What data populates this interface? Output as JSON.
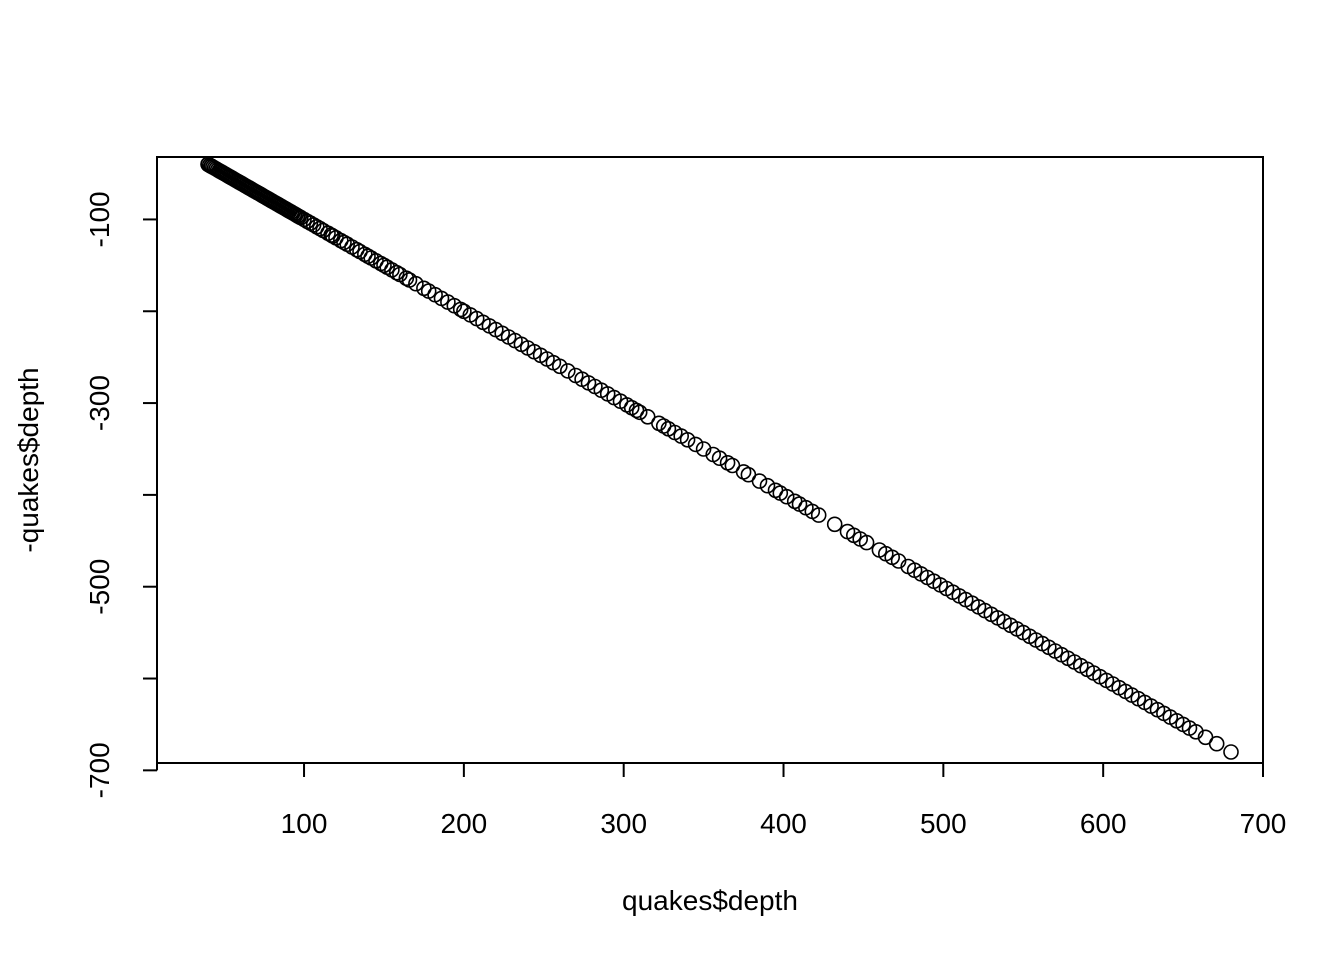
{
  "chart_data": {
    "type": "scatter",
    "title": "",
    "xlabel": "quakes$depth",
    "ylabel": "-quakes$depth",
    "xlim": [
      8,
      700
    ],
    "ylim": [
      -692,
      -32
    ],
    "x_ticks": [
      100,
      200,
      300,
      400,
      500,
      600,
      700
    ],
    "y_ticks": [
      -100,
      -300,
      -500,
      -700
    ],
    "x_tick_labels": [
      "100",
      "200",
      "300",
      "400",
      "500",
      "600",
      "700"
    ],
    "y_tick_labels": [
      "-100",
      "-300",
      "-500",
      "-700"
    ],
    "grid": false,
    "marker": "open-circle",
    "series": [
      {
        "x": [
          40,
          40,
          41,
          42,
          42,
          43,
          44,
          45,
          46,
          47,
          48,
          49,
          50,
          51,
          52,
          53,
          54,
          55,
          56,
          57,
          58,
          59,
          60,
          61,
          62,
          63,
          64,
          65,
          66,
          67,
          68,
          69,
          70,
          71,
          72,
          73,
          74,
          75,
          76,
          77,
          78,
          79,
          80,
          81,
          82,
          83,
          84,
          85,
          86,
          87,
          88,
          89,
          90,
          91,
          92,
          93,
          94,
          95,
          96,
          97,
          98,
          100,
          102,
          104,
          106,
          108,
          110,
          112,
          115,
          117,
          118,
          120,
          123,
          125,
          127,
          130,
          133,
          135,
          138,
          140,
          142,
          145,
          148,
          150,
          152,
          155,
          158,
          160,
          164,
          166,
          170,
          175,
          178,
          182,
          186,
          190,
          194,
          198,
          200,
          204,
          208,
          212,
          216,
          220,
          224,
          228,
          232,
          236,
          240,
          244,
          248,
          252,
          256,
          260,
          265,
          270,
          274,
          278,
          282,
          286,
          290,
          294,
          298,
          302,
          305,
          308,
          310,
          315,
          322,
          325,
          328,
          332,
          336,
          340,
          345,
          350,
          356,
          360,
          365,
          368,
          375,
          378,
          385,
          390,
          395,
          398,
          402,
          407,
          410,
          414,
          418,
          422,
          432,
          440,
          444,
          448,
          452,
          460,
          464,
          468,
          472,
          478,
          482,
          486,
          490,
          494,
          498,
          502,
          506,
          510,
          514,
          518,
          522,
          526,
          530,
          534,
          538,
          542,
          546,
          550,
          554,
          558,
          562,
          566,
          570,
          574,
          578,
          582,
          586,
          590,
          594,
          598,
          602,
          606,
          610,
          614,
          618,
          622,
          626,
          630,
          634,
          638,
          642,
          646,
          650,
          654,
          658,
          664,
          671,
          680
        ],
        "y": [
          -40,
          -40,
          -41,
          -42,
          -42,
          -43,
          -44,
          -45,
          -46,
          -47,
          -48,
          -49,
          -50,
          -51,
          -52,
          -53,
          -54,
          -55,
          -56,
          -57,
          -58,
          -59,
          -60,
          -61,
          -62,
          -63,
          -64,
          -65,
          -66,
          -67,
          -68,
          -69,
          -70,
          -71,
          -72,
          -73,
          -74,
          -75,
          -76,
          -77,
          -78,
          -79,
          -80,
          -81,
          -82,
          -83,
          -84,
          -85,
          -86,
          -87,
          -88,
          -89,
          -90,
          -91,
          -92,
          -93,
          -94,
          -95,
          -96,
          -97,
          -98,
          -100,
          -102,
          -104,
          -106,
          -108,
          -110,
          -112,
          -115,
          -117,
          -118,
          -120,
          -123,
          -125,
          -127,
          -130,
          -133,
          -135,
          -138,
          -140,
          -142,
          -145,
          -148,
          -150,
          -152,
          -155,
          -158,
          -160,
          -164,
          -166,
          -170,
          -175,
          -178,
          -182,
          -186,
          -190,
          -194,
          -198,
          -200,
          -204,
          -208,
          -212,
          -216,
          -220,
          -224,
          -228,
          -232,
          -236,
          -240,
          -244,
          -248,
          -252,
          -256,
          -260,
          -265,
          -270,
          -274,
          -278,
          -282,
          -286,
          -290,
          -294,
          -298,
          -302,
          -305,
          -308,
          -310,
          -315,
          -322,
          -325,
          -328,
          -332,
          -336,
          -340,
          -345,
          -350,
          -356,
          -360,
          -365,
          -368,
          -375,
          -378,
          -385,
          -390,
          -395,
          -398,
          -402,
          -407,
          -410,
          -414,
          -418,
          -422,
          -432,
          -440,
          -444,
          -448,
          -452,
          -460,
          -464,
          -468,
          -472,
          -478,
          -482,
          -486,
          -490,
          -494,
          -498,
          -502,
          -506,
          -510,
          -514,
          -518,
          -522,
          -526,
          -530,
          -534,
          -538,
          -542,
          -546,
          -550,
          -554,
          -558,
          -562,
          -566,
          -570,
          -574,
          -578,
          -582,
          -586,
          -590,
          -594,
          -598,
          -602,
          -606,
          -610,
          -614,
          -618,
          -622,
          -626,
          -630,
          -634,
          -638,
          -642,
          -646,
          -650,
          -654,
          -658,
          -664,
          -671,
          -680
        ]
      }
    ]
  }
}
